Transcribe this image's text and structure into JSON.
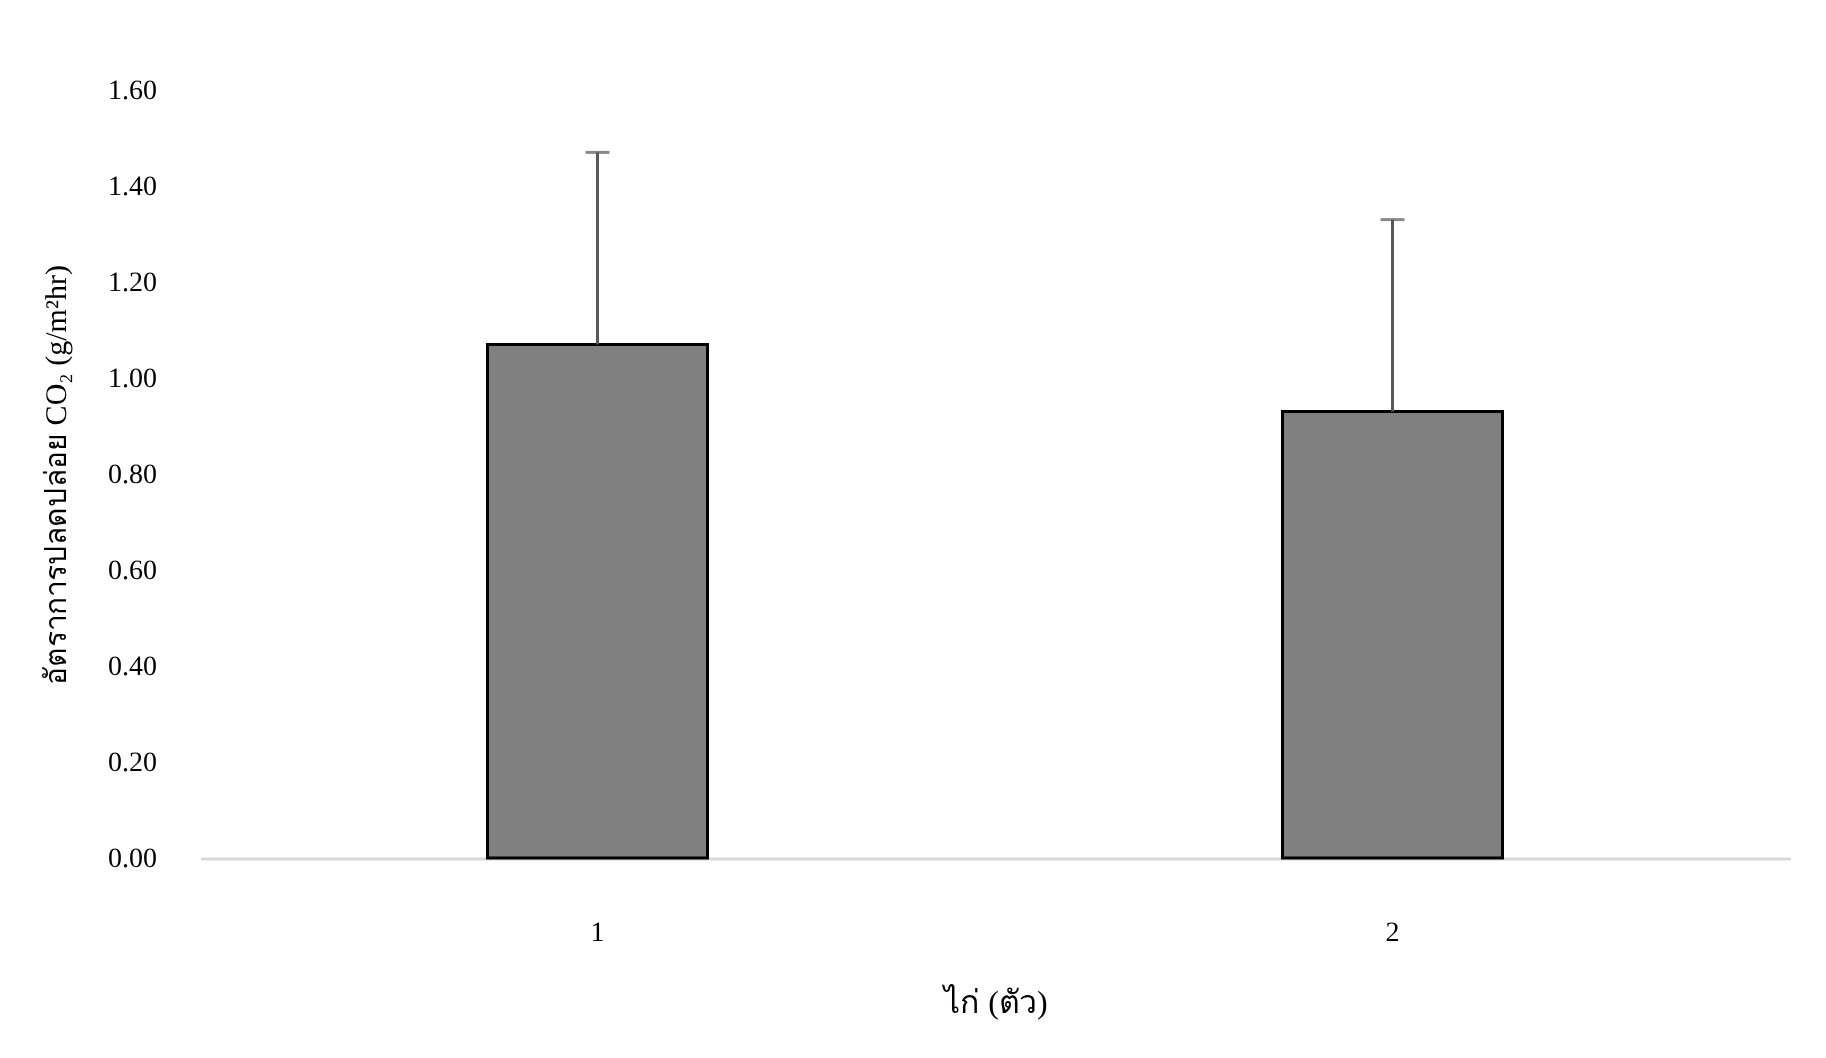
{
  "chart_data": {
    "type": "bar",
    "xlabel": "ไก่ (ตัว)",
    "ylabel": "อัตราการปลดปล่อย CO₂ (g/m²hr)",
    "categories": [
      "1",
      "2"
    ],
    "values": [
      1.07,
      0.93
    ],
    "errors": [
      [
        1.07,
        1.47
      ],
      [
        0.93,
        1.33
      ]
    ],
    "color": "#808080",
    "ylim": [
      0,
      1.6
    ],
    "yticks": [
      {
        "value": 0,
        "label": "0.00"
      },
      {
        "value": 0.2,
        "label": "0.20"
      },
      {
        "value": 0.4,
        "label": "0.40"
      },
      {
        "value": 0.6,
        "label": "0.60"
      },
      {
        "value": 0.8,
        "label": "0.80"
      },
      {
        "value": 1.0,
        "label": "1.00"
      },
      {
        "value": 1.2,
        "label": "1.20"
      },
      {
        "value": 1.4,
        "label": "1.40"
      },
      {
        "value": 1.6,
        "label": "1.60"
      }
    ],
    "grid": false
  }
}
